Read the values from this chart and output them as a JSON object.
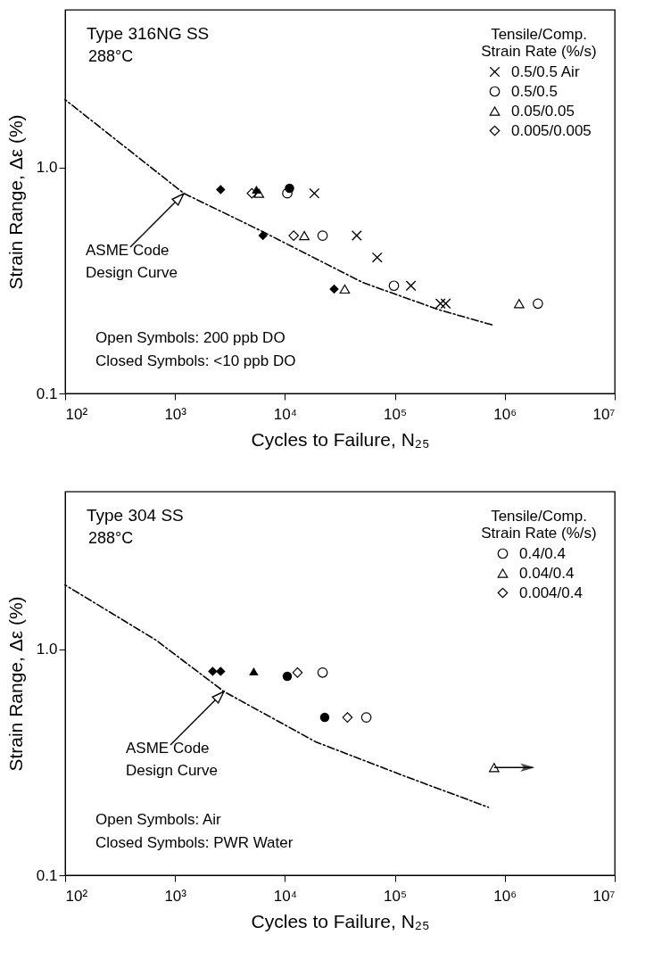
{
  "chart_data": [
    {
      "type": "scatter",
      "title": "Type 316NG SS",
      "subtitle": "288°C",
      "xlabel": "Cycles to Failure, N₂₅",
      "ylabel": "Strain Range, Δε (%)",
      "legend_title": "Tensile/Comp.\nStrain Rate (%/s)",
      "legend": "top right",
      "grid": false,
      "log": "xy",
      "xlim": [
        100,
        10000000
      ],
      "ylim": [
        0.1,
        5
      ],
      "xticks": [
        {
          "value": 100,
          "label": "10²"
        },
        {
          "value": 1000,
          "label": "10³"
        },
        {
          "value": 10000,
          "label": "10⁴"
        },
        {
          "value": 100000,
          "label": "10⁵"
        },
        {
          "value": 1000000,
          "label": "10⁶"
        },
        {
          "value": 10000000,
          "label": "10⁷"
        }
      ],
      "yticks": [
        0.1,
        {
          "value": 1,
          "label": "1.0"
        }
      ],
      "annotations": [
        "ASME Code\nDesign Curve",
        "Open Symbols: 200 ppb DO",
        "Closed Symbols: <10 ppb DO"
      ],
      "series": [
        {
          "type": "line",
          "line_style": "dashed",
          "marker": "none",
          "color": "#000000",
          "x": [
            100,
            1200,
            6300,
            51000,
            250000,
            800000
          ],
          "values": [
            2.0,
            0.77,
            0.52,
            0.31,
            0.235,
            0.2
          ]
        },
        {
          "name": "0.5/0.5 Air",
          "marker": "cross",
          "color": "#000000",
          "x": [
            18500,
            45000,
            69000,
            140000,
            260000,
            290000
          ],
          "values": [
            0.77,
            0.5,
            0.4,
            0.3,
            0.25,
            0.25
          ]
        },
        {
          "name": "0.5/0.5",
          "marker": "circle",
          "color": "#000000",
          "x": [
            10500,
            22000,
            98000,
            2000000
          ],
          "values": [
            0.77,
            0.5,
            0.3,
            0.25
          ]
        },
        {
          "name": "0.05/0.05",
          "marker": "triangle",
          "color": "#000000",
          "x": [
            5800,
            15000,
            35000,
            1350000
          ],
          "values": [
            0.77,
            0.5,
            0.29,
            0.25
          ]
        },
        {
          "name": "0.005/0.005",
          "marker": "diamond",
          "color": "#000000",
          "x": [
            5000,
            12000
          ],
          "values": [
            0.77,
            0.5
          ]
        },
        {
          "marker": "circle",
          "color": "#000000",
          "x": [
            11000
          ],
          "values": [
            0.81
          ]
        },
        {
          "marker": "triangle",
          "color": "#000000",
          "x": [
            5500
          ],
          "values": [
            0.8
          ]
        },
        {
          "marker": "diamond",
          "color": "#000000",
          "x": [
            2600,
            6300,
            28000
          ],
          "values": [
            0.8,
            0.5,
            0.29
          ]
        }
      ]
    },
    {
      "type": "scatter",
      "title": "Type 304 SS",
      "subtitle": "288°C",
      "xlabel": "Cycles to Failure, N₂₅",
      "ylabel": "Strain Range, Δε (%)",
      "legend_title": "Tensile/Comp.\nStrain Rate (%/s)",
      "legend": "top right",
      "grid": false,
      "log": "xy",
      "xlim": [
        100,
        10000000
      ],
      "ylim": [
        0.1,
        5
      ],
      "xticks": [
        {
          "value": 100,
          "label": "10²"
        },
        {
          "value": 1000,
          "label": "10³"
        },
        {
          "value": 10000,
          "label": "10⁴"
        },
        {
          "value": 100000,
          "label": "10⁵"
        },
        {
          "value": 1000000,
          "label": "10⁶"
        },
        {
          "value": 10000000,
          "label": "10⁷"
        }
      ],
      "yticks": [
        0.1,
        {
          "value": 1,
          "label": "1.0"
        }
      ],
      "annotations": [
        "ASME Code\nDesign Curve",
        "Open Symbols: Air",
        "Closed Symbols: PWR Water"
      ],
      "series": [
        {
          "type": "line",
          "line_style": "dashed",
          "marker": "none",
          "color": "#000000",
          "x": [
            100,
            670,
            2800,
            19000,
            135000,
            710000
          ],
          "values": [
            1.93,
            1.1,
            0.65,
            0.39,
            0.27,
            0.2
          ]
        },
        {
          "name": "0.4/0.4",
          "marker": "circle",
          "color": "#000000",
          "x": [
            22000,
            55000
          ],
          "values": [
            0.79,
            0.5
          ]
        },
        {
          "name": "0.04/0.4",
          "marker": "triangle",
          "color": "#000000",
          "x": [
            800000
          ],
          "values": [
            0.3
          ],
          "xerrors": [
            [
              800000,
              1800000
            ]
          ]
        },
        {
          "name": "0.004/0.4",
          "marker": "diamond",
          "color": "#000000",
          "x": [
            13000,
            37000
          ],
          "values": [
            0.79,
            0.5
          ]
        },
        {
          "marker": "circle",
          "color": "#000000",
          "x": [
            10500,
            23000
          ],
          "values": [
            0.76,
            0.5
          ]
        },
        {
          "marker": "triangle",
          "color": "#000000",
          "x": [
            5200
          ],
          "values": [
            0.8
          ]
        },
        {
          "marker": "diamond",
          "color": "#000000",
          "x": [
            2200,
            2600
          ],
          "values": [
            0.8,
            0.8
          ]
        }
      ]
    }
  ]
}
